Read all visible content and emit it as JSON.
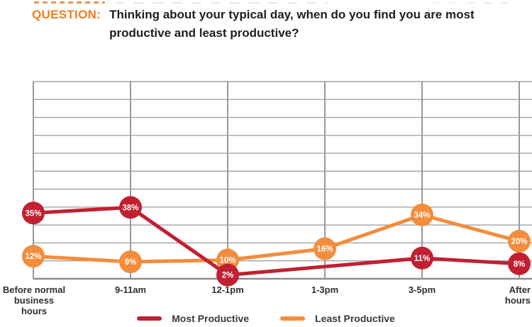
{
  "header": {
    "label": "QUESTION:",
    "question_lines": [
      "Thinking about your typical day, when do you find you are most",
      "productive and least productive?"
    ]
  },
  "chart_data": {
    "type": "line",
    "title": "",
    "categories": [
      "Before normal business hours",
      "9-11am",
      "12-1pm",
      "1-3pm",
      "3-5pm",
      "After hours"
    ],
    "series": [
      {
        "name": "Most Productive",
        "color": "#c02031",
        "values": [
          35,
          38,
          2,
          null,
          11,
          8
        ]
      },
      {
        "name": "Least Productive",
        "color": "#f28d3d",
        "values": [
          12,
          9,
          10,
          16,
          34,
          20
        ]
      }
    ],
    "unit": "%",
    "data_labels": "percentage shown in circular bubble on each point",
    "notes": "Most Productive series has no labeled point at 1-3pm; line connects 12-1pm directly to 3-5pm",
    "ylim": [
      0,
      105
    ],
    "grid": {
      "horizontal_divisions": 11,
      "vertical_line_per_category": true,
      "axis_tick_labels": "none"
    },
    "legend_position": "bottom-center"
  },
  "colors": {
    "question_label": "#f47c21",
    "question_text": "#1e1e21",
    "grid_line": "#a3a3a3",
    "grid_vertical": "#999999",
    "axis_line": "#8c8c8c",
    "axis_label": "#2e2e36",
    "legend_label": "#3a3a3a",
    "bubble_text": "#ffffff"
  }
}
